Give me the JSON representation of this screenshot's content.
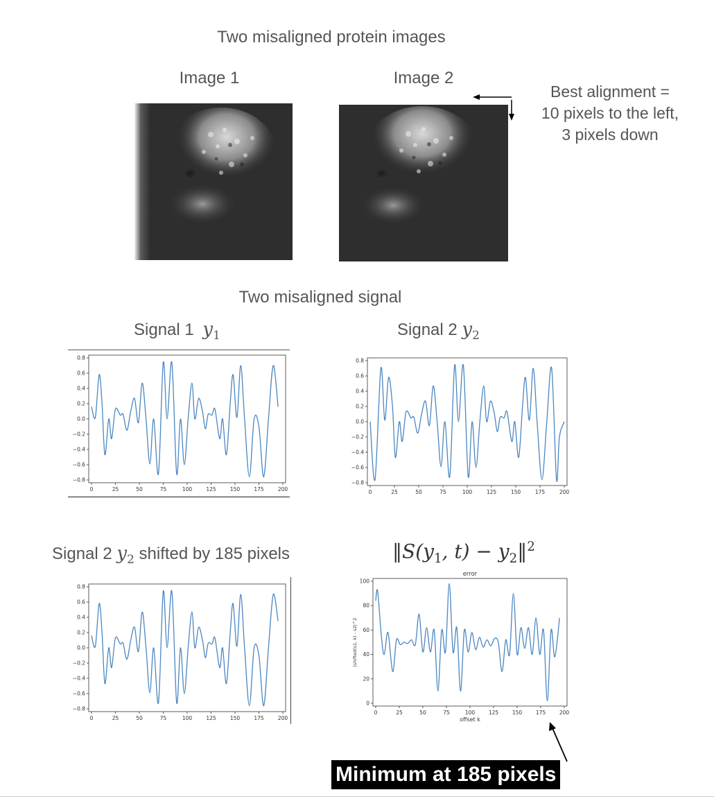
{
  "header": {
    "title": "Two misaligned protein images"
  },
  "images": {
    "image1_label": "Image 1",
    "image2_label": "Image 2",
    "alignment_note": [
      "Best alignment =",
      "10 pixels to the left,",
      "3 pixels down"
    ]
  },
  "signals": {
    "section_title": "Two misaligned signal",
    "signal1_label": "Signal 1",
    "signal1_var": "y",
    "signal1_sub": "1",
    "signal2_label": "Signal 2",
    "signal2_var": "y",
    "signal2_sub": "2",
    "shifted_label_pre": "Signal 2",
    "shifted_var": "y",
    "shifted_sub": "2",
    "shifted_label_post": "shifted by 185 pixels",
    "error_formula": "||S(y1, t) − y2||^2"
  },
  "callout": {
    "text": "Minimum at 185 pixels"
  },
  "colors": {
    "line": "#4a86c0",
    "callout_bg": "#000000",
    "text": "#555555"
  },
  "chart_data": [
    {
      "id": "signal1",
      "type": "line",
      "title": "",
      "xlabel": "",
      "ylabel": "",
      "xlim": [
        0,
        200
      ],
      "ylim": [
        -0.8,
        0.8
      ],
      "xticks": [
        0,
        25,
        50,
        75,
        100,
        125,
        150,
        175,
        200
      ],
      "yticks": [
        -0.8,
        -0.6,
        -0.4,
        -0.2,
        0.0,
        0.2,
        0.4,
        0.6,
        0.8
      ],
      "points": [
        [
          0,
          0.16
        ],
        [
          4,
          0.02
        ],
        [
          8,
          0.58
        ],
        [
          11,
          0.2
        ],
        [
          14,
          -0.47
        ],
        [
          18,
          0.0
        ],
        [
          21,
          -0.26
        ],
        [
          25,
          0.13
        ],
        [
          30,
          0.05
        ],
        [
          33,
          0.06
        ],
        [
          37,
          -0.15
        ],
        [
          41,
          0.1
        ],
        [
          45,
          0.27
        ],
        [
          49,
          -0.05
        ],
        [
          53,
          0.47
        ],
        [
          57,
          0.0
        ],
        [
          61,
          -0.59
        ],
        [
          65,
          0.0
        ],
        [
          70,
          -0.72
        ],
        [
          75,
          0.74
        ],
        [
          79,
          0.0
        ],
        [
          84,
          0.74
        ],
        [
          89,
          -0.72
        ],
        [
          93,
          0.0
        ],
        [
          97,
          -0.6
        ],
        [
          101,
          0.0
        ],
        [
          105,
          0.47
        ],
        [
          108,
          0.0
        ],
        [
          112,
          0.27
        ],
        [
          116,
          0.1
        ],
        [
          119,
          -0.13
        ],
        [
          122,
          0.06
        ],
        [
          126,
          0.05
        ],
        [
          129,
          0.13
        ],
        [
          134,
          -0.26
        ],
        [
          137,
          0.0
        ],
        [
          141,
          -0.47
        ],
        [
          145,
          0.2
        ],
        [
          148,
          0.58
        ],
        [
          152,
          0.02
        ],
        [
          156,
          0.7
        ],
        [
          160,
          0.0
        ],
        [
          165,
          -0.76
        ],
        [
          170,
          0.0
        ],
        [
          175,
          -0.1
        ],
        [
          180,
          -0.76
        ],
        [
          185,
          0.0
        ],
        [
          190,
          0.7
        ],
        [
          195,
          0.16
        ]
      ]
    },
    {
      "id": "signal2",
      "type": "line",
      "title": "",
      "xlabel": "",
      "ylabel": "",
      "xlim": [
        0,
        200
      ],
      "ylim": [
        -0.8,
        0.8
      ],
      "xticks": [
        0,
        25,
        50,
        75,
        100,
        125,
        150,
        175,
        200
      ],
      "yticks": [
        -0.8,
        -0.6,
        -0.4,
        -0.2,
        0.0,
        0.2,
        0.4,
        0.6,
        0.8
      ],
      "points": [
        [
          0,
          0.0
        ],
        [
          5,
          -0.76
        ],
        [
          11,
          0.7
        ],
        [
          15,
          0.02
        ],
        [
          19,
          0.58
        ],
        [
          23,
          0.2
        ],
        [
          26,
          -0.47
        ],
        [
          30,
          0.0
        ],
        [
          33,
          -0.26
        ],
        [
          37,
          0.13
        ],
        [
          42,
          0.05
        ],
        [
          45,
          0.06
        ],
        [
          49,
          -0.15
        ],
        [
          53,
          0.1
        ],
        [
          57,
          0.27
        ],
        [
          61,
          -0.05
        ],
        [
          65,
          0.47
        ],
        [
          69,
          0.0
        ],
        [
          73,
          -0.59
        ],
        [
          77,
          0.0
        ],
        [
          82,
          -0.72
        ],
        [
          87,
          0.74
        ],
        [
          91,
          0.0
        ],
        [
          96,
          0.74
        ],
        [
          101,
          -0.72
        ],
        [
          105,
          0.0
        ],
        [
          109,
          -0.6
        ],
        [
          113,
          0.0
        ],
        [
          117,
          0.47
        ],
        [
          120,
          0.0
        ],
        [
          124,
          0.27
        ],
        [
          128,
          0.1
        ],
        [
          131,
          -0.13
        ],
        [
          134,
          0.06
        ],
        [
          138,
          0.05
        ],
        [
          141,
          0.13
        ],
        [
          146,
          -0.26
        ],
        [
          149,
          0.0
        ],
        [
          153,
          -0.47
        ],
        [
          157,
          0.2
        ],
        [
          160,
          0.58
        ],
        [
          164,
          0.02
        ],
        [
          168,
          0.7
        ],
        [
          172,
          0.0
        ],
        [
          177,
          -0.76
        ],
        [
          182,
          0.0
        ],
        [
          187,
          0.7
        ],
        [
          192,
          -0.76
        ],
        [
          195,
          -0.2
        ],
        [
          200,
          0.0
        ]
      ]
    },
    {
      "id": "shifted",
      "type": "line",
      "title": "",
      "xlabel": "",
      "ylabel": "",
      "xlim": [
        0,
        200
      ],
      "ylim": [
        -0.8,
        0.8
      ],
      "xticks": [
        0,
        25,
        50,
        75,
        100,
        125,
        150,
        175,
        200
      ],
      "yticks": [
        -0.8,
        -0.6,
        -0.4,
        -0.2,
        0.0,
        0.2,
        0.4,
        0.6,
        0.8
      ],
      "points": [
        [
          0,
          0.16
        ],
        [
          4,
          0.02
        ],
        [
          8,
          0.58
        ],
        [
          11,
          0.2
        ],
        [
          14,
          -0.47
        ],
        [
          18,
          0.0
        ],
        [
          21,
          -0.26
        ],
        [
          25,
          0.13
        ],
        [
          30,
          0.05
        ],
        [
          33,
          0.06
        ],
        [
          37,
          -0.15
        ],
        [
          41,
          0.1
        ],
        [
          45,
          0.27
        ],
        [
          49,
          -0.05
        ],
        [
          53,
          0.47
        ],
        [
          57,
          0.0
        ],
        [
          61,
          -0.59
        ],
        [
          65,
          0.0
        ],
        [
          70,
          -0.72
        ],
        [
          75,
          0.74
        ],
        [
          79,
          0.0
        ],
        [
          84,
          0.74
        ],
        [
          89,
          -0.72
        ],
        [
          93,
          0.0
        ],
        [
          97,
          -0.6
        ],
        [
          101,
          0.0
        ],
        [
          105,
          0.47
        ],
        [
          108,
          0.0
        ],
        [
          112,
          0.27
        ],
        [
          116,
          0.1
        ],
        [
          119,
          -0.13
        ],
        [
          122,
          0.06
        ],
        [
          126,
          0.05
        ],
        [
          129,
          0.13
        ],
        [
          134,
          -0.26
        ],
        [
          137,
          0.0
        ],
        [
          141,
          -0.47
        ],
        [
          145,
          0.2
        ],
        [
          148,
          0.58
        ],
        [
          152,
          0.02
        ],
        [
          156,
          0.7
        ],
        [
          160,
          0.0
        ],
        [
          165,
          -0.76
        ],
        [
          170,
          0.0
        ],
        [
          175,
          -0.1
        ],
        [
          180,
          -0.76
        ],
        [
          185,
          0.0
        ],
        [
          190,
          0.7
        ],
        [
          195,
          0.35
        ]
      ]
    },
    {
      "id": "error",
      "type": "line",
      "title": "error",
      "xlabel": "offset k",
      "ylabel": "|shifted(s1, k) - s2|^2",
      "xlim": [
        0,
        200
      ],
      "ylim": [
        0,
        100
      ],
      "xticks": [
        0,
        25,
        50,
        75,
        100,
        125,
        150,
        175,
        200
      ],
      "yticks": [
        0,
        20,
        40,
        60,
        80,
        100
      ],
      "points": [
        [
          0,
          84
        ],
        [
          2,
          92
        ],
        [
          6,
          55
        ],
        [
          9,
          40
        ],
        [
          13,
          58
        ],
        [
          18,
          26
        ],
        [
          22,
          52
        ],
        [
          26,
          48
        ],
        [
          30,
          50
        ],
        [
          34,
          49
        ],
        [
          38,
          52
        ],
        [
          42,
          48
        ],
        [
          46,
          73
        ],
        [
          50,
          42
        ],
        [
          54,
          62
        ],
        [
          58,
          42
        ],
        [
          62,
          60
        ],
        [
          66,
          10
        ],
        [
          70,
          60
        ],
        [
          74,
          42
        ],
        [
          78,
          98
        ],
        [
          82,
          42
        ],
        [
          86,
          62
        ],
        [
          90,
          10
        ],
        [
          94,
          60
        ],
        [
          98,
          42
        ],
        [
          102,
          58
        ],
        [
          106,
          44
        ],
        [
          110,
          54
        ],
        [
          114,
          46
        ],
        [
          118,
          52
        ],
        [
          122,
          47
        ],
        [
          126,
          53
        ],
        [
          130,
          50
        ],
        [
          134,
          26
        ],
        [
          138,
          52
        ],
        [
          142,
          40
        ],
        [
          146,
          90
        ],
        [
          150,
          40
        ],
        [
          154,
          62
        ],
        [
          158,
          45
        ],
        [
          162,
          62
        ],
        [
          166,
          40
        ],
        [
          170,
          70
        ],
        [
          174,
          40
        ],
        [
          178,
          60
        ],
        [
          182,
          2
        ],
        [
          186,
          60
        ],
        [
          190,
          38
        ],
        [
          195,
          70
        ]
      ]
    }
  ]
}
